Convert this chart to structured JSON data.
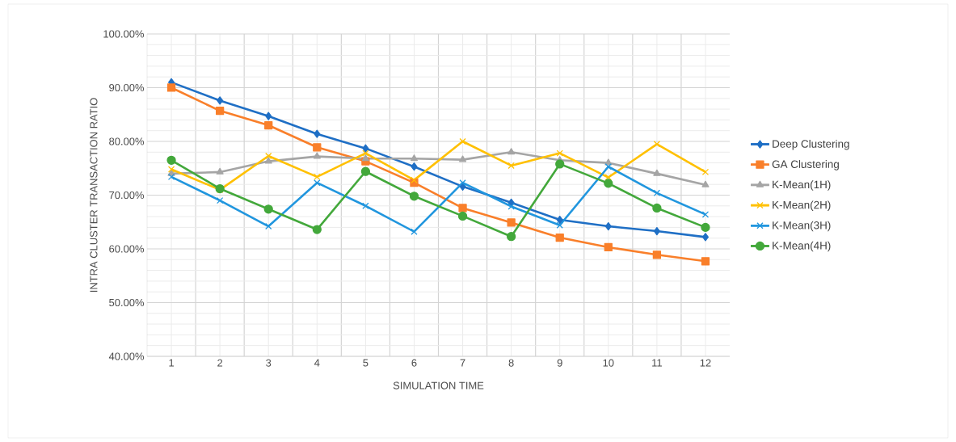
{
  "chart_data": {
    "type": "line",
    "xlabel": "SIMULATION TIME",
    "ylabel": "INTRA CLUSTER TRANSACTION RATIO",
    "categories": [
      "1",
      "2",
      "3",
      "4",
      "5",
      "6",
      "7",
      "8",
      "9",
      "10",
      "11",
      "12"
    ],
    "ylim": [
      40,
      100
    ],
    "yticks": [
      {
        "value": 40,
        "label": "40.00%"
      },
      {
        "value": 50,
        "label": "50.00%"
      },
      {
        "value": 60,
        "label": "60.00%"
      },
      {
        "value": 70,
        "label": "70.00%"
      },
      {
        "value": 80,
        "label": "80.00%"
      },
      {
        "value": 90,
        "label": "90.00%"
      },
      {
        "value": 100,
        "label": "100.00%"
      }
    ],
    "grid": true,
    "legend": "right",
    "line_style": "solid",
    "series": [
      {
        "name": "Deep Clustering",
        "color": "#1f6fc5",
        "marker": "diamond",
        "values": [
          91.0,
          87.6,
          84.7,
          81.4,
          78.7,
          75.3,
          71.6,
          68.6,
          65.4,
          64.2,
          63.3,
          62.2
        ]
      },
      {
        "name": "GA Clustering",
        "color": "#f97f2a",
        "marker": "square",
        "values": [
          90.0,
          85.7,
          83.0,
          78.9,
          76.3,
          72.3,
          67.6,
          64.9,
          62.1,
          60.3,
          58.9,
          57.7
        ]
      },
      {
        "name": "K-Mean(1H)",
        "color": "#a5a5a5",
        "marker": "triangle",
        "values": [
          74.0,
          74.3,
          76.3,
          77.2,
          76.8,
          76.8,
          76.6,
          78.0,
          76.5,
          76.0,
          74.0,
          71.9
        ]
      },
      {
        "name": "K-Mean(2H)",
        "color": "#ffc000",
        "marker": "cross",
        "values": [
          74.8,
          71.0,
          77.3,
          73.4,
          77.8,
          72.8,
          80.0,
          75.5,
          77.8,
          73.3,
          79.5,
          74.3
        ]
      },
      {
        "name": "K-Mean(3H)",
        "color": "#2196de",
        "marker": "cross",
        "values": [
          73.4,
          69.0,
          64.2,
          72.3,
          68.0,
          63.2,
          72.3,
          67.9,
          64.4,
          75.3,
          70.4,
          66.4
        ]
      },
      {
        "name": "K-Mean(4H)",
        "color": "#43a83b",
        "marker": "circle",
        "values": [
          76.5,
          71.2,
          67.4,
          63.6,
          74.4,
          69.8,
          66.1,
          62.3,
          75.8,
          72.2,
          67.6,
          64.0
        ]
      }
    ]
  }
}
